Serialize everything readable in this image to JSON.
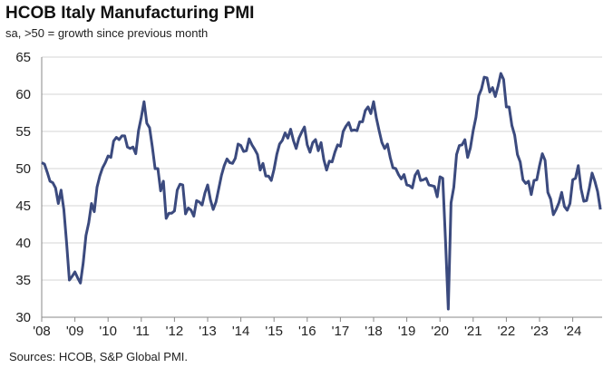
{
  "chart_data": {
    "type": "line",
    "title": "HCOB Italy Manufacturing PMI",
    "subtitle": "sa, >50 = growth since previous month",
    "source": "Sources: HCOB, S&P Global PMI.",
    "ylim": [
      30,
      65
    ],
    "yticks": [
      "30",
      "35",
      "40",
      "45",
      "50",
      "55",
      "60",
      "65"
    ],
    "xticks": [
      "'08",
      "'09",
      "'10",
      "'11",
      "'12",
      "'13",
      "'14",
      "'15",
      "'16",
      "'17",
      "'18",
      "'19",
      "'20",
      "'21",
      "'22",
      "'23",
      "'24"
    ],
    "grid": "horizontal",
    "line_color": "#3B4A7E",
    "start": "2008-01",
    "frequency": "monthly",
    "values": [
      50.8,
      50.6,
      49.5,
      48.3,
      48.1,
      47.4,
      45.3,
      47.1,
      44.5,
      40.0,
      35.0,
      35.5,
      36.1,
      35.3,
      34.6,
      37.3,
      41.0,
      42.7,
      45.3,
      44.2,
      47.5,
      49.0,
      50.1,
      50.8,
      51.7,
      51.5,
      53.7,
      54.2,
      53.9,
      54.4,
      54.4,
      52.9,
      52.7,
      52.9,
      52.0,
      55.1,
      56.9,
      59.0,
      56.1,
      55.5,
      52.9,
      50.0,
      50.0,
      47.0,
      48.3,
      43.3,
      44.0,
      44.0,
      44.3,
      47.1,
      47.9,
      47.8,
      43.9,
      44.7,
      44.4,
      43.6,
      45.7,
      45.5,
      45.1,
      46.7,
      47.8,
      45.8,
      44.5,
      45.5,
      47.3,
      49.1,
      50.4,
      51.3,
      50.8,
      50.7,
      51.4,
      53.3,
      53.1,
      52.3,
      52.4,
      54.0,
      53.2,
      52.6,
      51.9,
      49.8,
      50.7,
      49.0,
      49.0,
      48.4,
      49.9,
      51.9,
      53.3,
      53.8,
      54.8,
      54.1,
      55.3,
      53.8,
      52.7,
      54.1,
      54.9,
      55.6,
      53.2,
      52.2,
      53.5,
      53.9,
      52.4,
      53.5,
      51.2,
      49.8,
      51.0,
      50.9,
      52.2,
      53.2,
      53.0,
      55.0,
      55.7,
      56.2,
      55.1,
      55.2,
      55.1,
      56.3,
      56.3,
      57.8,
      58.3,
      57.4,
      59.0,
      56.8,
      55.1,
      53.5,
      52.7,
      53.3,
      51.5,
      50.1,
      50.0,
      49.2,
      48.6,
      49.2,
      47.8,
      47.7,
      47.4,
      49.1,
      49.7,
      48.4,
      48.5,
      48.7,
      47.8,
      47.7,
      47.6,
      46.2,
      48.9,
      48.7,
      40.3,
      31.1,
      45.4,
      47.5,
      51.9,
      53.1,
      53.2,
      53.9,
      51.5,
      52.8,
      55.1,
      56.9,
      59.8,
      60.7,
      62.3,
      62.2,
      60.3,
      60.9,
      59.7,
      61.1,
      62.8,
      62.0,
      58.3,
      58.3,
      55.8,
      54.5,
      51.9,
      50.9,
      48.5,
      48.0,
      48.3,
      46.5,
      48.4,
      48.5,
      50.4,
      52.0,
      51.1,
      46.8,
      45.9,
      43.8,
      44.5,
      45.4,
      46.8,
      44.9,
      44.4,
      45.3,
      48.5,
      48.7,
      50.4,
      47.3,
      45.6,
      45.7,
      47.4,
      49.4,
      48.3,
      46.9,
      44.5
    ]
  }
}
